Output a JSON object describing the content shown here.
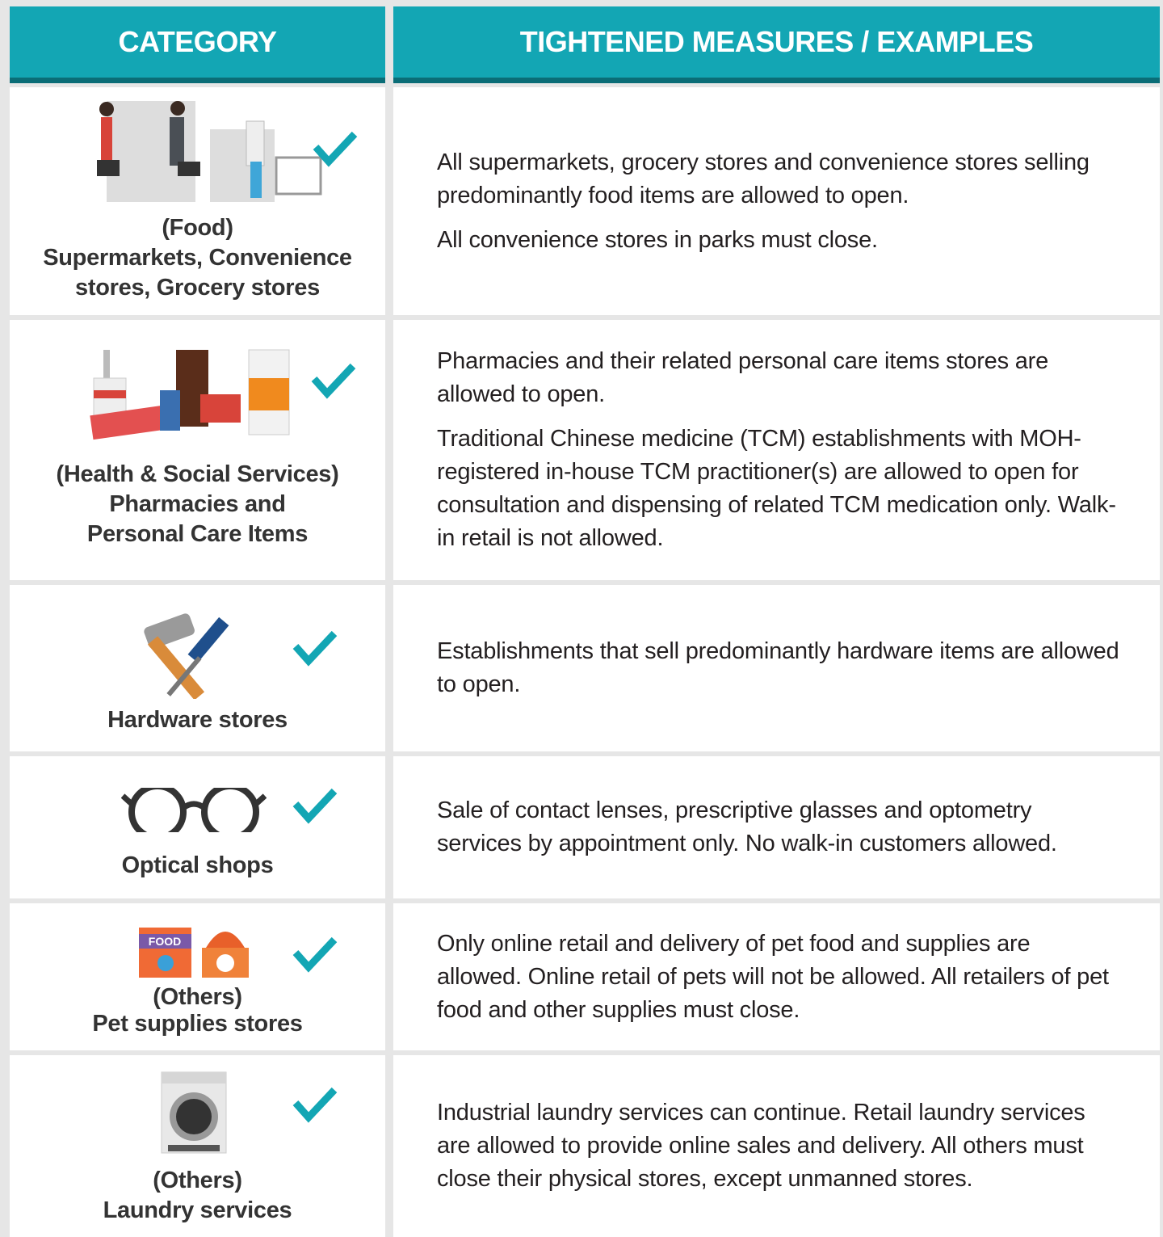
{
  "header": {
    "category": "CATEGORY",
    "measures": "TIGHTENED MEASURES / EXAMPLES"
  },
  "rows": [
    {
      "category": [
        "(Food)",
        "Supermarkets, Convenience",
        "stores, Grocery stores"
      ],
      "measures": [
        "All supermarkets, grocery stores and convenience stores selling predominantly food items are allowed to open.",
        "All convenience stores in parks must close."
      ]
    },
    {
      "category": [
        "(Health & Social Services)",
        "Pharmacies and",
        "Personal Care Items"
      ],
      "measures": [
        "Pharmacies and their related personal care items stores are allowed to open.",
        "Traditional Chinese medicine (TCM) establishments with MOH-registered in-house TCM practitioner(s) are allowed to open for consultation and dispensing of related TCM medication only. Walk-in retail is not allowed."
      ]
    },
    {
      "category": [
        "Hardware stores"
      ],
      "measures": [
        "Establishments that sell predominantly hardware items are allowed to open."
      ]
    },
    {
      "category": [
        "Optical shops"
      ],
      "measures": [
        "Sale of contact lenses, prescriptive glasses and optometry services by appointment only. No walk-in customers allowed."
      ]
    },
    {
      "category": [
        "(Others)",
        "Pet supplies stores"
      ],
      "icon_label": "FOOD",
      "measures": [
        "Only online retail and delivery of pet food and supplies are allowed. Online retail of pets will not be allowed. All retailers of pet food and other supplies must close."
      ]
    },
    {
      "category": [
        "(Others)",
        "Laundry services"
      ],
      "measures": [
        "Industrial laundry services can continue. Retail laundry services are allowed to provide online sales and delivery. All others must close their physical stores, except unmanned stores."
      ]
    }
  ]
}
